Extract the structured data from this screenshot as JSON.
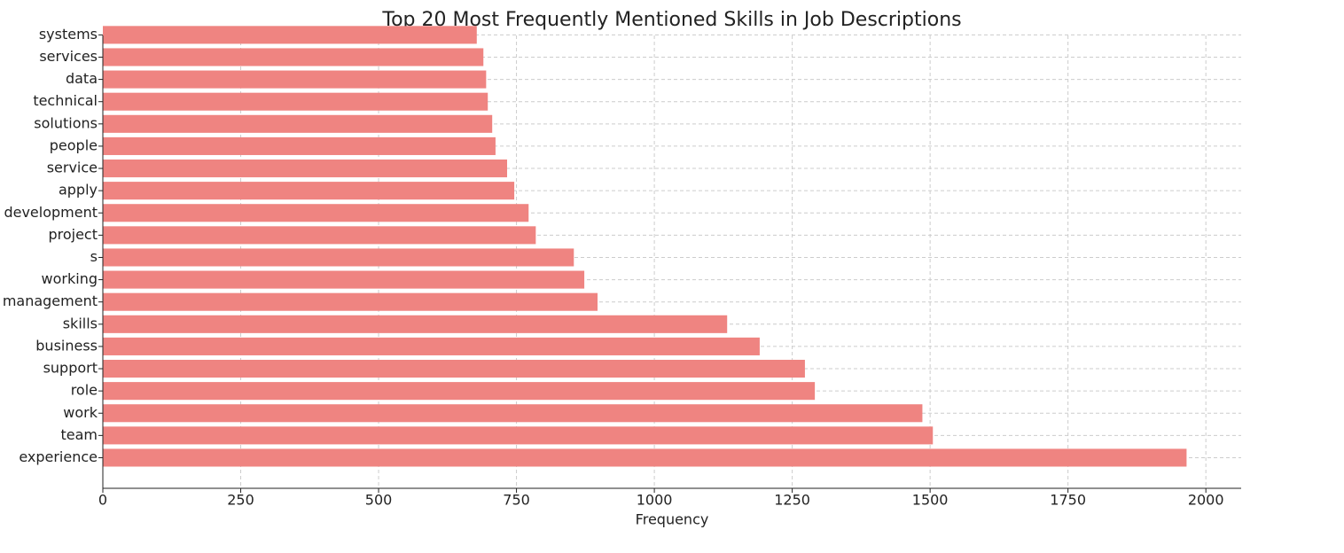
{
  "chart_data": {
    "type": "barh",
    "title": "Top 20 Most Frequently Mentioned Skills in Job Descriptions",
    "x_label": "Frequency",
    "categories": [
      "experience",
      "team",
      "work",
      "role",
      "support",
      "business",
      "skills",
      "management",
      "working",
      "s",
      "project",
      "development",
      "apply",
      "service",
      "people",
      "solutions",
      "technical",
      "data",
      "services",
      "systems"
    ],
    "values": [
      1965,
      1505,
      1486,
      1291,
      1273,
      1191,
      1132,
      897,
      873,
      854,
      785,
      772,
      746,
      733,
      712,
      706,
      698,
      695,
      690,
      678
    ],
    "color": "#ef8481",
    "xlim": [
      0,
      2064
    ],
    "xticks": [
      0,
      250,
      500,
      750,
      1000,
      1250,
      1500,
      1750,
      2000
    ],
    "grid": true
  }
}
